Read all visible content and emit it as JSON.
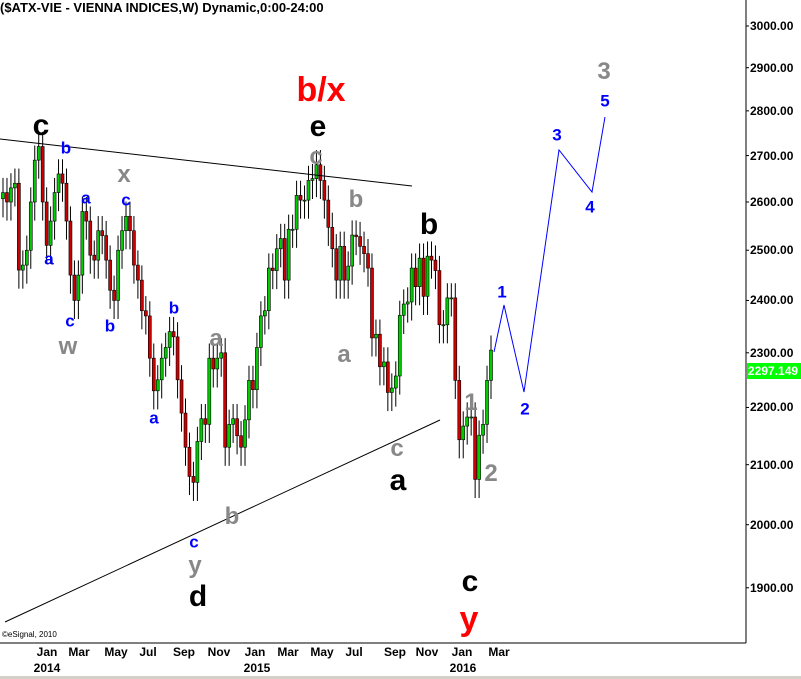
{
  "title": "($ATX-VIE - VIENNA INDICES,W) Dynamic,0:00-24:00",
  "copyright": "©eSignal, 2010",
  "last_price": "2297.149",
  "colors": {
    "up": "#00cc00",
    "down": "#cc0000",
    "projection": "#0000ff",
    "price_tag": "#00ff00"
  },
  "chart_data": {
    "type": "candlestick",
    "title": "($ATX-VIE - VIENNA INDICES,W) Dynamic,0:00-24:00",
    "y_scale": "log",
    "ylim": [
      1820,
      3060
    ],
    "y_ticks": [
      "3000.00",
      "2900.00",
      "2800.00",
      "2700.00",
      "2600.00",
      "2500.00",
      "2400.00",
      "2300.00",
      "2200.00",
      "2100.00",
      "2000.00",
      "1900.00"
    ],
    "x_ticks": [
      "Jan",
      "Mar",
      "May",
      "Jul",
      "Sep",
      "Nov",
      "Jan",
      "Mar",
      "May",
      "Jul",
      "Sep",
      "Nov",
      "Jan",
      "Mar"
    ],
    "x_years": [
      "2014",
      "2015",
      "2016"
    ],
    "grid": false,
    "weekly_closes": [
      2620,
      2600,
      2630,
      2640,
      2460,
      2470,
      2500,
      2600,
      2690,
      2720,
      2600,
      2510,
      2560,
      2620,
      2660,
      2640,
      2560,
      2450,
      2400,
      2450,
      2580,
      2560,
      2490,
      2480,
      2540,
      2530,
      2480,
      2420,
      2400,
      2500,
      2540,
      2570,
      2540,
      2470,
      2440,
      2380,
      2370,
      2290,
      2230,
      2250,
      2290,
      2310,
      2340,
      2330,
      2250,
      2190,
      2130,
      2080,
      2070,
      2140,
      2180,
      2170,
      2290,
      2270,
      2290,
      2300,
      2130,
      2170,
      2180,
      2150,
      2130,
      2178,
      2249,
      2232,
      2310,
      2370,
      2380,
      2464,
      2459,
      2503,
      2524,
      2440,
      2543,
      2543,
      2614,
      2604,
      2604,
      2646,
      2650,
      2680,
      2646,
      2604,
      2547,
      2503,
      2440,
      2508,
      2440,
      2468,
      2531,
      2528,
      2508,
      2493,
      2464,
      2328,
      2335,
      2274,
      2283,
      2227,
      2235,
      2257,
      2371,
      2393,
      2397,
      2464,
      2427,
      2484,
      2408,
      2488,
      2480,
      2459,
      2353,
      2353,
      2405,
      2405,
      2249,
      2143,
      2167,
      2183,
      2183,
      2075,
      2151,
      2170,
      2249,
      2305
    ]
  },
  "annotations": {
    "top_c": "c",
    "blue_b1": "b",
    "blue_a1": "a",
    "gray_x": "x",
    "blue_c1": "c",
    "blue_a2": "a",
    "blue_c2": "c",
    "gray_w": "w",
    "blue_b2": "b",
    "blue_b3": "b",
    "gray_a1": "a",
    "blue_a3": "a",
    "gray_b1": "b",
    "blue_c3": "c",
    "gray_y": "y",
    "black_d": "d",
    "red_bx": "b/x",
    "black_e": "e",
    "gray_c1": "c",
    "gray_b2": "b",
    "gray_a2": "a",
    "black_b": "b",
    "gray_c2": "c",
    "black_a": "a",
    "gray_1": "1",
    "gray_2": "2",
    "black_c": "c",
    "red_y": "y",
    "proj_1": "1",
    "proj_2": "2",
    "proj_3": "3",
    "proj_4": "4",
    "proj_5": "5",
    "gray_3": "3"
  }
}
